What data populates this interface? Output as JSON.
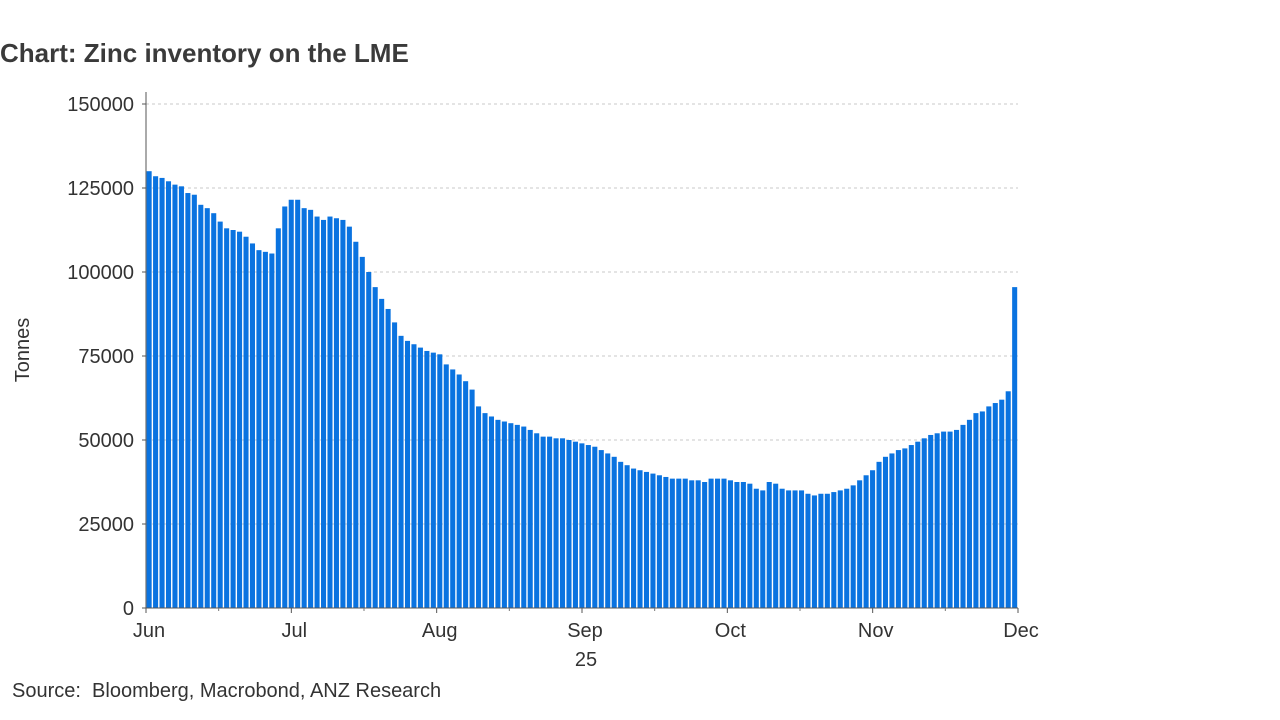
{
  "chart_data": {
    "type": "bar",
    "title": "Chart: Zinc inventory on the LME",
    "ylabel": "Tonnes",
    "xlabel": "",
    "year_label": "25",
    "source": "Source:  Bloomberg, Macrobond, ANZ Research",
    "ylim": [
      0,
      150000
    ],
    "yticks": [
      "0",
      "25000",
      "50000",
      "75000",
      "100000",
      "125000",
      "150000"
    ],
    "xticks": [
      "Jun",
      "Jul",
      "Aug",
      "Sep",
      "Oct",
      "Nov",
      "Dec"
    ],
    "grid": "horizontal dashed",
    "bar_color": "#0a73e0",
    "values": [
      130000,
      128500,
      128000,
      127000,
      126000,
      125500,
      123500,
      123000,
      120000,
      119000,
      117500,
      115000,
      113000,
      112500,
      112000,
      110500,
      108500,
      106500,
      106000,
      105500,
      113000,
      119500,
      121500,
      121500,
      119000,
      118500,
      116500,
      115500,
      116500,
      116000,
      115500,
      113500,
      109000,
      104500,
      100000,
      95500,
      92000,
      89000,
      85000,
      81000,
      79500,
      78500,
      77500,
      76500,
      76000,
      75500,
      72500,
      71000,
      69500,
      67500,
      65000,
      60000,
      58000,
      57000,
      56000,
      55500,
      55000,
      54500,
      54000,
      53000,
      52000,
      51000,
      51000,
      50500,
      50500,
      50000,
      49500,
      49000,
      48500,
      48000,
      47000,
      46000,
      45000,
      43500,
      42500,
      41500,
      41000,
      40500,
      40000,
      39500,
      39000,
      38500,
      38500,
      38500,
      38000,
      38000,
      37500,
      38500,
      38500,
      38500,
      38000,
      37500,
      37500,
      37000,
      35500,
      35000,
      37500,
      37000,
      35500,
      35000,
      35000,
      35000,
      34000,
      33500,
      34000,
      34000,
      34500,
      35000,
      35500,
      36500,
      38000,
      39500,
      41000,
      43500,
      45000,
      46000,
      47000,
      47500,
      48500,
      49500,
      50500,
      51500,
      52000,
      52500,
      52500,
      53000,
      54500,
      56000,
      58000,
      58500,
      60000,
      61000,
      62000,
      64500,
      95500
    ]
  }
}
